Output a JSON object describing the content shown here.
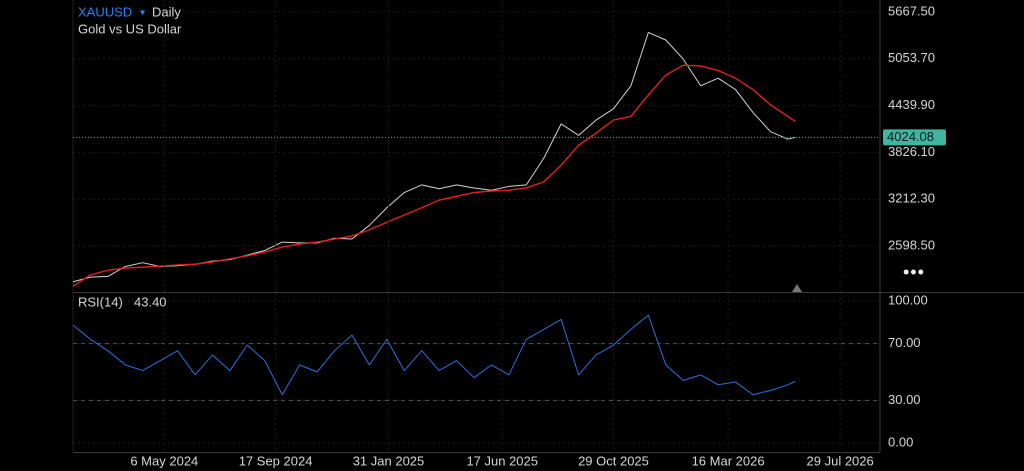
{
  "chart_data": [
    {
      "type": "line",
      "title": "XAUUSD",
      "interval": "Daily",
      "subtitle": "Gold vs US Dollar",
      "x": [
        "2024-01-17",
        "2024-02-07",
        "2024-02-28",
        "2024-03-20",
        "2024-04-10",
        "2024-05-01",
        "2024-05-22",
        "2024-06-12",
        "2024-07-03",
        "2024-07-24",
        "2024-08-14",
        "2024-09-04",
        "2024-09-25",
        "2024-10-16",
        "2024-11-06",
        "2024-11-27",
        "2024-12-18",
        "2025-01-08",
        "2025-01-29",
        "2025-02-19",
        "2025-03-12",
        "2025-04-02",
        "2025-04-23",
        "2025-05-14",
        "2025-06-04",
        "2025-06-25",
        "2025-07-16",
        "2025-08-06",
        "2025-08-27",
        "2025-09-17",
        "2025-10-08",
        "2025-10-29",
        "2025-11-19",
        "2025-12-10",
        "2025-12-31",
        "2026-01-21",
        "2026-02-11",
        "2026-03-04",
        "2026-03-25",
        "2026-04-15",
        "2026-05-06",
        "2026-05-27",
        "2026-06-05"
      ],
      "xlim": [
        "2024-01-17",
        "2026-09-15"
      ],
      "series": [
        {
          "color": "#d4d4d4",
          "values": [
            2130,
            2190,
            2200,
            2330,
            2380,
            2330,
            2340,
            2360,
            2400,
            2420,
            2480,
            2540,
            2650,
            2640,
            2640,
            2700,
            2690,
            2870,
            3100,
            3300,
            3400,
            3350,
            3400,
            3360,
            3330,
            3380,
            3400,
            3750,
            4200,
            4050,
            4250,
            4400,
            4700,
            5400,
            5300,
            5050,
            4700,
            4800,
            4650,
            4350,
            4100,
            4000,
            4024.08
          ]
        },
        {
          "color": "#e3211c",
          "values": [
            2070,
            2220,
            2280,
            2310,
            2320,
            2335,
            2350,
            2360,
            2390,
            2430,
            2470,
            2520,
            2585,
            2625,
            2650,
            2690,
            2730,
            2810,
            2910,
            3005,
            3100,
            3200,
            3250,
            3300,
            3320,
            3330,
            3360,
            3440,
            3660,
            3920,
            4080,
            4250,
            4300,
            4580,
            4840,
            4970,
            4960,
            4900,
            4800,
            4650,
            4450,
            4300,
            4230
          ]
        }
      ],
      "ylim": [
        1995.5,
        5824.9
      ],
      "yticks": [
        {
          "value": 2598.5,
          "label": "2598.50"
        },
        {
          "value": 3212.3,
          "label": "3212.30"
        },
        {
          "value": 3826.1,
          "label": "3826.10"
        },
        {
          "value": 4439.9,
          "label": "4439.90"
        },
        {
          "value": 5053.7,
          "label": "5053.70"
        },
        {
          "value": 5667.5,
          "label": "5667.50"
        }
      ],
      "price_line": 4024.08,
      "price_line_label": "4024.08",
      "price_line_color": "#3fb6a3",
      "grid": true
    },
    {
      "type": "line",
      "title": "RSI(14)",
      "current_value": "43.40",
      "x": [
        "2024-01-17",
        "2024-02-07",
        "2024-02-28",
        "2024-03-20",
        "2024-04-10",
        "2024-05-01",
        "2024-05-22",
        "2024-06-12",
        "2024-07-03",
        "2024-07-24",
        "2024-08-14",
        "2024-09-04",
        "2024-09-25",
        "2024-10-16",
        "2024-11-06",
        "2024-11-27",
        "2024-12-18",
        "2025-01-08",
        "2025-01-29",
        "2025-02-19",
        "2025-03-12",
        "2025-04-02",
        "2025-04-23",
        "2025-05-14",
        "2025-06-04",
        "2025-06-25",
        "2025-07-16",
        "2025-08-06",
        "2025-08-27",
        "2025-09-17",
        "2025-10-08",
        "2025-10-29",
        "2025-11-19",
        "2025-12-10",
        "2025-12-31",
        "2026-01-21",
        "2026-02-11",
        "2026-03-04",
        "2026-03-25",
        "2026-04-15",
        "2026-05-06",
        "2026-05-27",
        "2026-06-05"
      ],
      "xlim": [
        "2024-01-17",
        "2026-09-15"
      ],
      "series": [
        {
          "color": "#2f6fe0",
          "values": [
            83,
            73,
            65,
            55,
            51,
            58,
            65,
            48,
            62,
            51,
            69,
            58,
            34,
            55,
            50,
            65,
            76,
            55,
            73,
            51,
            65,
            51,
            58,
            46,
            55,
            48,
            73,
            80,
            87,
            48,
            62,
            69,
            80,
            90,
            55,
            44,
            48,
            41,
            43,
            34,
            37,
            41,
            43.4
          ]
        }
      ],
      "ylim": [
        -6.3,
        105.6
      ],
      "yticks": [
        {
          "value": 0,
          "label": "0.00"
        },
        {
          "value": 30,
          "label": "30.00"
        },
        {
          "value": 70,
          "label": "70.00"
        },
        {
          "value": 100,
          "label": "100.00"
        }
      ],
      "hlines": [
        30,
        70
      ],
      "xticks": [
        {
          "value": "2024-05-06",
          "label": "6 May 2024"
        },
        {
          "value": "2024-09-17",
          "label": "17 Sep 2024"
        },
        {
          "value": "2025-01-31",
          "label": "31 Jan 2025"
        },
        {
          "value": "2025-06-17",
          "label": "17 Jun 2025"
        },
        {
          "value": "2025-10-29",
          "label": "29 Oct 2025"
        },
        {
          "value": "2026-03-16",
          "label": "16 Mar 2026"
        },
        {
          "value": "2026-07-29",
          "label": "29 Jul 2026"
        }
      ],
      "grid": true
    }
  ]
}
